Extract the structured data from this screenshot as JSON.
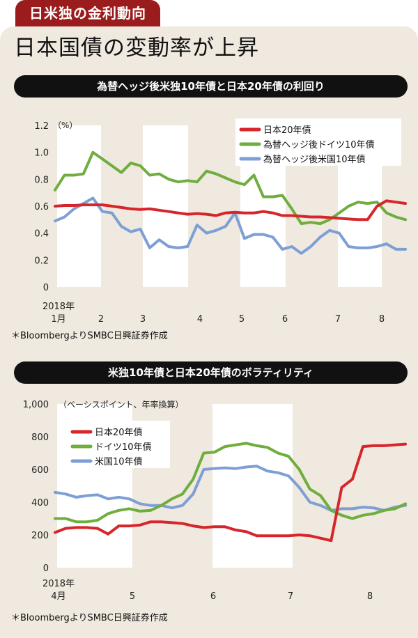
{
  "header": {
    "tag": "日米独の金利動向",
    "headline": "日本国債の変動率が上昇"
  },
  "colors": {
    "japan": "#d7262b",
    "germany": "#6fae3e",
    "us": "#7e9fd5",
    "tag_bg": "#9b1c1c",
    "panel_bg": "#efe9df"
  },
  "chart_data": [
    {
      "type": "line",
      "title": "為替ヘッジ後米独10年債と日本20年債の利回り",
      "unit_label": "（%）",
      "ylim": [
        0,
        1.2
      ],
      "yticks": [
        "1.2",
        "1.0",
        "0.8",
        "0.6",
        "0.4",
        "0.2",
        "0"
      ],
      "x_tick_labels": [
        "1月",
        "2",
        "3",
        "4",
        "5",
        "6",
        "7",
        "8"
      ],
      "x_year_label": "2018年",
      "legend": [
        "日本20年債",
        "為替ヘッジ後ドイツ10年債",
        "為替ヘッジ後米国10年債"
      ],
      "source": "＊BloombergよりSMBC日興証券作成",
      "series": [
        {
          "name": "日本20年債",
          "values": [
            0.6,
            0.605,
            0.605,
            0.61,
            0.61,
            0.61,
            0.6,
            0.59,
            0.58,
            0.575,
            0.58,
            0.57,
            0.56,
            0.55,
            0.54,
            0.545,
            0.54,
            0.53,
            0.55,
            0.555,
            0.55,
            0.55,
            0.56,
            0.55,
            0.53,
            0.53,
            0.525,
            0.52,
            0.52,
            0.515,
            0.51,
            0.505,
            0.5,
            0.5,
            0.6,
            0.64,
            0.63,
            0.62
          ]
        },
        {
          "name": "為替ヘッジ後ドイツ10年債",
          "values": [
            0.72,
            0.83,
            0.83,
            0.84,
            1.0,
            0.95,
            0.9,
            0.85,
            0.92,
            0.9,
            0.83,
            0.84,
            0.8,
            0.78,
            0.79,
            0.78,
            0.86,
            0.84,
            0.81,
            0.78,
            0.76,
            0.83,
            0.67,
            0.67,
            0.68,
            0.58,
            0.47,
            0.48,
            0.47,
            0.5,
            0.55,
            0.6,
            0.63,
            0.62,
            0.63,
            0.55,
            0.52,
            0.5
          ]
        },
        {
          "name": "為替ヘッジ後米国10年債",
          "values": [
            0.49,
            0.52,
            0.58,
            0.62,
            0.66,
            0.56,
            0.55,
            0.45,
            0.41,
            0.43,
            0.29,
            0.35,
            0.3,
            0.29,
            0.3,
            0.46,
            0.4,
            0.42,
            0.45,
            0.55,
            0.36,
            0.39,
            0.39,
            0.37,
            0.28,
            0.3,
            0.25,
            0.3,
            0.37,
            0.42,
            0.4,
            0.3,
            0.29,
            0.29,
            0.3,
            0.32,
            0.28,
            0.28
          ]
        }
      ]
    },
    {
      "type": "line",
      "title": "米独10年債と日本20年債のボラティリティ",
      "unit_label": "（ベーシスポイント、年率換算）",
      "ylim": [
        0,
        1000
      ],
      "yticks": [
        "1,000",
        "800",
        "600",
        "400",
        "200",
        "0"
      ],
      "x_tick_labels": [
        "4月",
        "5",
        "6",
        "7",
        "8"
      ],
      "x_year_label": "2018年",
      "legend": [
        "日本20年債",
        "ドイツ10年債",
        "米国10年債"
      ],
      "source": "＊BloombergよりSMBC日興証券作成",
      "series": [
        {
          "name": "日本20年債",
          "values": [
            215,
            240,
            245,
            245,
            240,
            205,
            255,
            255,
            260,
            280,
            280,
            275,
            270,
            255,
            245,
            250,
            250,
            230,
            220,
            195,
            195,
            195,
            195,
            200,
            195,
            180,
            165,
            490,
            540,
            740,
            745,
            745,
            750,
            755
          ]
        },
        {
          "name": "ドイツ10年債",
          "values": [
            300,
            300,
            280,
            280,
            290,
            330,
            350,
            360,
            345,
            350,
            380,
            420,
            450,
            540,
            700,
            705,
            740,
            750,
            760,
            745,
            735,
            700,
            680,
            600,
            480,
            440,
            350,
            320,
            300,
            320,
            330,
            350,
            360,
            390
          ]
        },
        {
          "name": "米国10年債",
          "values": [
            460,
            450,
            430,
            440,
            445,
            420,
            430,
            420,
            390,
            380,
            380,
            365,
            380,
            450,
            600,
            605,
            610,
            605,
            615,
            620,
            590,
            580,
            560,
            490,
            400,
            380,
            350,
            360,
            360,
            370,
            365,
            350,
            370,
            380
          ]
        }
      ]
    }
  ]
}
